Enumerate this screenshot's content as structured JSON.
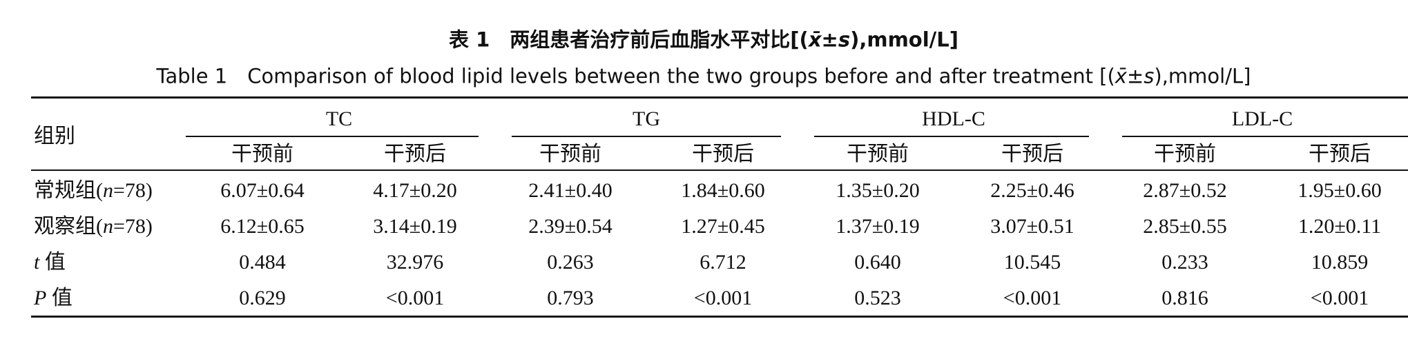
{
  "caption_cn": [
    "表 1　两组患者治疗前后血脂水平对比[(",
    "x̄±s",
    "),mmol/L]"
  ],
  "caption_en": [
    "Table 1　Comparison of blood lipid levels between the two groups before and after treatment [(",
    "x̄±s",
    "),mmol/L]"
  ],
  "table": {
    "corner": "组别",
    "groups": [
      "TC",
      "TG",
      "HDL-C",
      "LDL-C"
    ],
    "subheaders": [
      "干预前",
      "干预后",
      "干预前",
      "干预后",
      "干预前",
      "干预后",
      "干预前",
      "干预后"
    ],
    "rows": [
      {
        "label": [
          "常规组(",
          "n",
          "=78)"
        ],
        "cells": [
          "6.07±0.64",
          "4.17±0.20",
          "2.41±0.40",
          "1.84±0.60",
          "1.35±0.20",
          "2.25±0.46",
          "2.87±0.52",
          "1.95±0.60"
        ]
      },
      {
        "label": [
          "观察组(",
          "n",
          "=78)"
        ],
        "cells": [
          "6.12±0.65",
          "3.14±0.19",
          "2.39±0.54",
          "1.27±0.45",
          "1.37±0.19",
          "3.07±0.51",
          "2.85±0.55",
          "1.20±0.11"
        ]
      },
      {
        "label": [
          "t",
          " 值"
        ],
        "cells": [
          "0.484",
          "32.976",
          "0.263",
          "6.712",
          "0.640",
          "10.545",
          "0.233",
          "10.859"
        ]
      },
      {
        "label": [
          "P",
          " 值"
        ],
        "cells": [
          "0.629",
          "<0.001",
          "0.793",
          "<0.001",
          "0.523",
          "<0.001",
          "0.816",
          "<0.001"
        ]
      }
    ]
  }
}
